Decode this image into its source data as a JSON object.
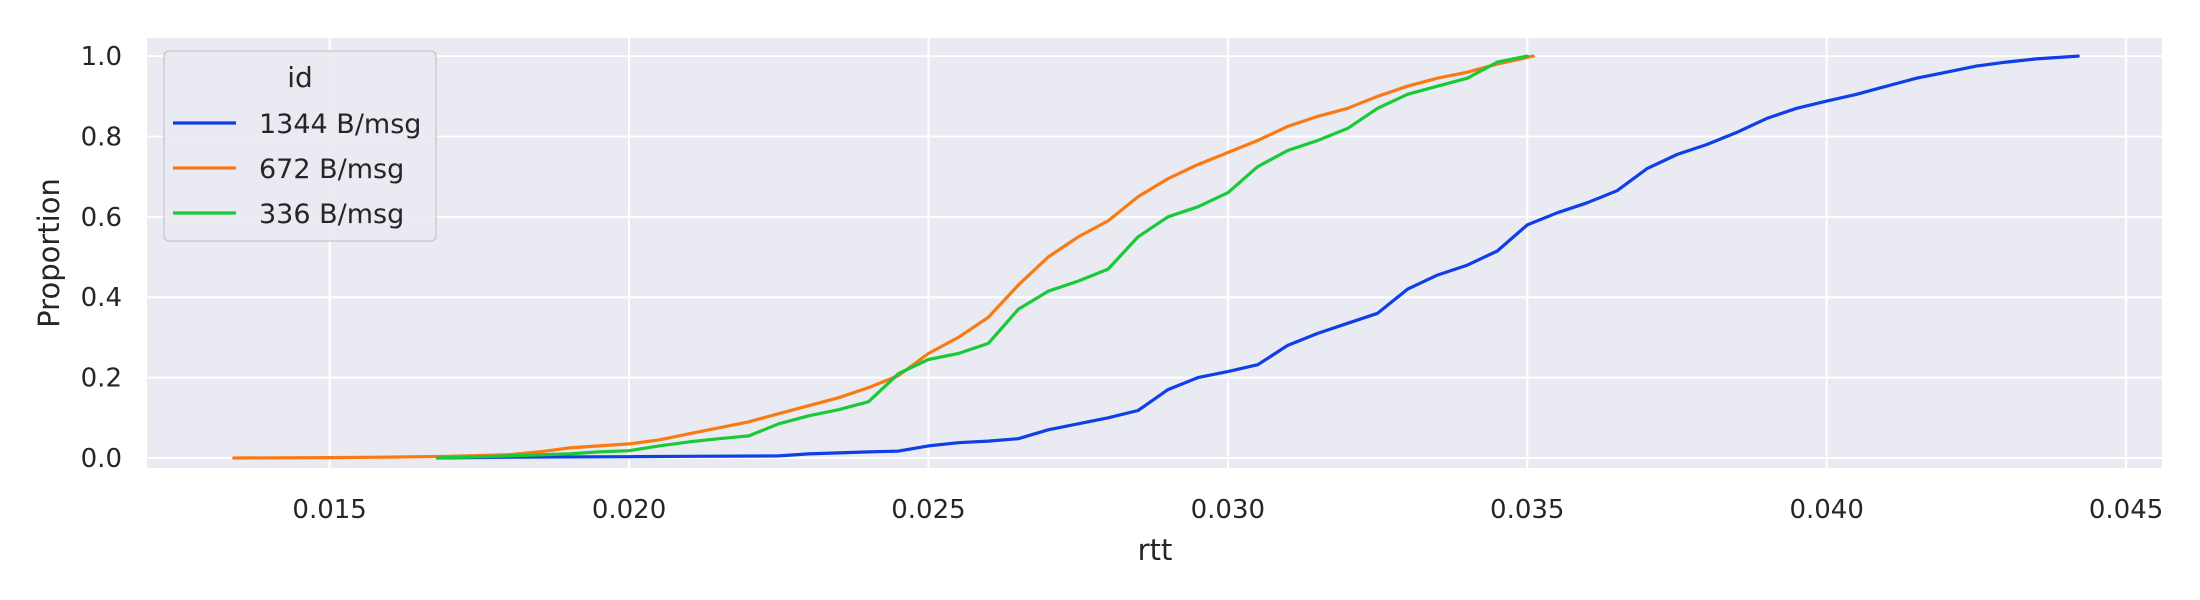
{
  "chart_data": {
    "type": "line",
    "title": "",
    "xlabel": "rtt",
    "ylabel": "Proportion",
    "xlim": [
      0.01195,
      0.0456
    ],
    "ylim": [
      -0.025,
      1.045
    ],
    "xticks": [
      0.015,
      0.02,
      0.025,
      0.03,
      0.035,
      0.04,
      0.045
    ],
    "xtick_labels": [
      "0.015",
      "0.020",
      "0.025",
      "0.030",
      "0.035",
      "0.040",
      "0.045"
    ],
    "yticks": [
      0.0,
      0.2,
      0.4,
      0.6,
      0.8,
      1.0
    ],
    "ytick_labels": [
      "0.0",
      "0.2",
      "0.4",
      "0.6",
      "0.8",
      "1.0"
    ],
    "grid": true,
    "background": "#eaeaf2",
    "legend": {
      "title": "id",
      "location": "upper-left"
    },
    "series": [
      {
        "name": "1344 B/msg",
        "color": "#0f3fe6",
        "points": [
          [
            0.0168,
            0.0
          ],
          [
            0.018,
            0.002
          ],
          [
            0.02,
            0.003
          ],
          [
            0.021,
            0.004
          ],
          [
            0.0225,
            0.005
          ],
          [
            0.023,
            0.01
          ],
          [
            0.024,
            0.015
          ],
          [
            0.0245,
            0.017
          ],
          [
            0.025,
            0.03
          ],
          [
            0.0255,
            0.038
          ],
          [
            0.026,
            0.042
          ],
          [
            0.0265,
            0.048
          ],
          [
            0.027,
            0.07
          ],
          [
            0.0275,
            0.085
          ],
          [
            0.028,
            0.1
          ],
          [
            0.0285,
            0.118
          ],
          [
            0.029,
            0.17
          ],
          [
            0.0295,
            0.2
          ],
          [
            0.03,
            0.215
          ],
          [
            0.0305,
            0.232
          ],
          [
            0.031,
            0.28
          ],
          [
            0.0315,
            0.31
          ],
          [
            0.032,
            0.335
          ],
          [
            0.0325,
            0.36
          ],
          [
            0.033,
            0.42
          ],
          [
            0.0335,
            0.455
          ],
          [
            0.034,
            0.48
          ],
          [
            0.0345,
            0.515
          ],
          [
            0.035,
            0.58
          ],
          [
            0.0355,
            0.61
          ],
          [
            0.036,
            0.635
          ],
          [
            0.0365,
            0.665
          ],
          [
            0.037,
            0.72
          ],
          [
            0.0375,
            0.755
          ],
          [
            0.038,
            0.78
          ],
          [
            0.0385,
            0.81
          ],
          [
            0.039,
            0.845
          ],
          [
            0.0395,
            0.87
          ],
          [
            0.04,
            0.888
          ],
          [
            0.0405,
            0.905
          ],
          [
            0.041,
            0.925
          ],
          [
            0.0415,
            0.945
          ],
          [
            0.042,
            0.96
          ],
          [
            0.0425,
            0.975
          ],
          [
            0.043,
            0.985
          ],
          [
            0.0435,
            0.993
          ],
          [
            0.0442,
            1.0
          ]
        ]
      },
      {
        "name": "672 B/msg",
        "color": "#f97a12",
        "points": [
          [
            0.0134,
            0.0
          ],
          [
            0.015,
            0.001
          ],
          [
            0.016,
            0.002
          ],
          [
            0.017,
            0.004
          ],
          [
            0.018,
            0.008
          ],
          [
            0.0185,
            0.015
          ],
          [
            0.019,
            0.025
          ],
          [
            0.0195,
            0.03
          ],
          [
            0.02,
            0.035
          ],
          [
            0.0205,
            0.045
          ],
          [
            0.021,
            0.06
          ],
          [
            0.0215,
            0.075
          ],
          [
            0.022,
            0.09
          ],
          [
            0.0225,
            0.11
          ],
          [
            0.023,
            0.13
          ],
          [
            0.0235,
            0.15
          ],
          [
            0.024,
            0.175
          ],
          [
            0.0245,
            0.205
          ],
          [
            0.025,
            0.26
          ],
          [
            0.0255,
            0.3
          ],
          [
            0.026,
            0.35
          ],
          [
            0.0265,
            0.43
          ],
          [
            0.027,
            0.5
          ],
          [
            0.0275,
            0.55
          ],
          [
            0.028,
            0.59
          ],
          [
            0.0285,
            0.65
          ],
          [
            0.029,
            0.695
          ],
          [
            0.0295,
            0.73
          ],
          [
            0.03,
            0.76
          ],
          [
            0.0305,
            0.79
          ],
          [
            0.031,
            0.825
          ],
          [
            0.0315,
            0.85
          ],
          [
            0.032,
            0.87
          ],
          [
            0.0325,
            0.9
          ],
          [
            0.033,
            0.925
          ],
          [
            0.0335,
            0.945
          ],
          [
            0.034,
            0.96
          ],
          [
            0.0345,
            0.98
          ],
          [
            0.0351,
            1.0
          ]
        ]
      },
      {
        "name": "336 B/msg",
        "color": "#1ac938",
        "points": [
          [
            0.0168,
            0.0
          ],
          [
            0.018,
            0.005
          ],
          [
            0.019,
            0.01
          ],
          [
            0.0195,
            0.015
          ],
          [
            0.02,
            0.018
          ],
          [
            0.0205,
            0.03
          ],
          [
            0.021,
            0.04
          ],
          [
            0.0215,
            0.048
          ],
          [
            0.022,
            0.055
          ],
          [
            0.0225,
            0.085
          ],
          [
            0.023,
            0.105
          ],
          [
            0.0235,
            0.12
          ],
          [
            0.024,
            0.14
          ],
          [
            0.0245,
            0.21
          ],
          [
            0.025,
            0.245
          ],
          [
            0.0255,
            0.26
          ],
          [
            0.026,
            0.285
          ],
          [
            0.0265,
            0.37
          ],
          [
            0.027,
            0.415
          ],
          [
            0.0275,
            0.44
          ],
          [
            0.028,
            0.47
          ],
          [
            0.0285,
            0.55
          ],
          [
            0.029,
            0.6
          ],
          [
            0.0295,
            0.625
          ],
          [
            0.03,
            0.66
          ],
          [
            0.0305,
            0.725
          ],
          [
            0.031,
            0.765
          ],
          [
            0.0315,
            0.79
          ],
          [
            0.032,
            0.82
          ],
          [
            0.0325,
            0.87
          ],
          [
            0.033,
            0.905
          ],
          [
            0.0335,
            0.925
          ],
          [
            0.034,
            0.945
          ],
          [
            0.0345,
            0.985
          ],
          [
            0.035,
            1.0
          ]
        ]
      }
    ]
  }
}
